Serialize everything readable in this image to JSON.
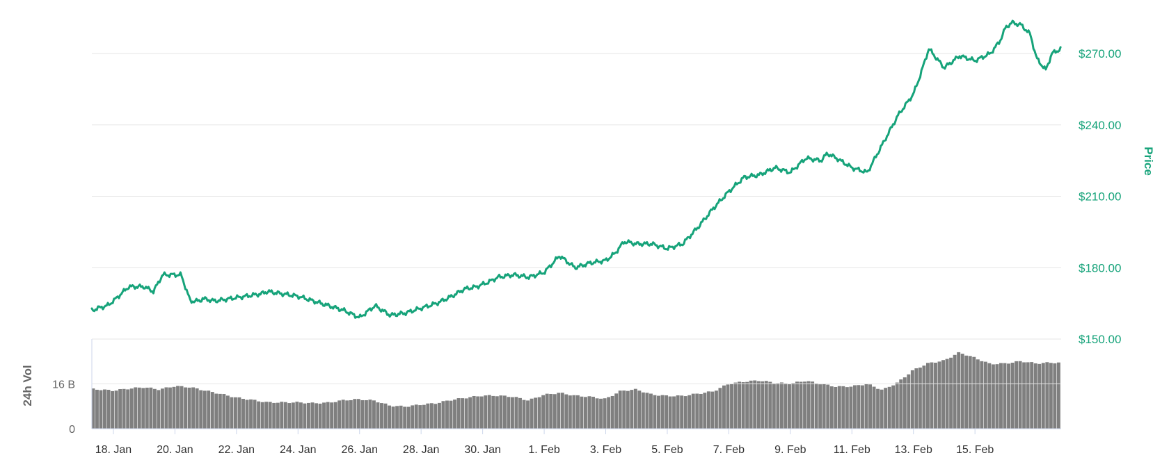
{
  "chart_data": {
    "type": "line",
    "title": "",
    "price_axis": {
      "label": "Price",
      "ticks": [
        "$150.00",
        "$180.00",
        "$210.00",
        "$240.00",
        "$270.00"
      ],
      "tick_values": [
        150,
        180,
        210,
        240,
        270
      ],
      "ylim": [
        150,
        280
      ],
      "position": "right"
    },
    "volume_axis": {
      "label": "24h Vol",
      "ticks": [
        "0",
        "16 B"
      ],
      "tick_values": [
        0,
        16
      ],
      "unit": "B",
      "ylim": [
        0,
        32
      ],
      "position": "left"
    },
    "x_axis": {
      "ticks": [
        "18. Jan",
        "20. Jan",
        "22. Jan",
        "24. Jan",
        "26. Jan",
        "28. Jan",
        "30. Jan",
        "1. Feb",
        "3. Feb",
        "5. Feb",
        "7. Feb",
        "9. Feb",
        "11. Feb",
        "13. Feb",
        "15. Feb"
      ],
      "range_days": [
        -0.7,
        30.8
      ]
    },
    "grid": true,
    "series": [
      {
        "name": "Price",
        "color": "#16a37a",
        "x": [
          -0.7,
          -0.5,
          -0.2,
          0,
          0.5,
          1,
          1.3,
          1.6,
          1.9,
          2.2,
          2.5,
          2.8,
          2.9,
          3.3,
          3.8,
          4.3,
          4.8,
          5,
          5.5,
          6,
          6.5,
          7,
          7.5,
          8,
          8.5,
          9,
          9.5,
          10,
          10.5,
          11,
          11.4,
          11.8,
          12.2,
          12.5,
          13,
          13.5,
          14,
          14.5,
          15,
          15.5,
          16,
          16.3,
          16.6,
          17,
          17.5,
          18,
          18.5,
          19,
          19.5,
          20,
          20.5,
          21,
          21.5,
          22,
          22.5,
          23,
          23.2,
          23.5,
          24,
          24.5,
          25,
          25.5,
          26,
          26.2,
          26.5,
          27,
          27.5,
          28,
          28.5,
          28.8,
          29,
          29.2,
          29.5,
          29.8,
          30,
          30.3,
          30.5,
          30.8
        ],
        "values": [
          162,
          163,
          164,
          166,
          172,
          172,
          170,
          177,
          177,
          177,
          166,
          166,
          167,
          166,
          167,
          168,
          169,
          170,
          169,
          168,
          166,
          164,
          162,
          159,
          164,
          160,
          161,
          163,
          165,
          168,
          171,
          172,
          174,
          176,
          177,
          176,
          178,
          185,
          180,
          182,
          183,
          186,
          191,
          190,
          190,
          188,
          190,
          197,
          205,
          212,
          218,
          219,
          222,
          220,
          226,
          225,
          228,
          226,
          222,
          220,
          232,
          244,
          253,
          260,
          272,
          264,
          269,
          267,
          270,
          275,
          281,
          283,
          282,
          278,
          268,
          263,
          270,
          272
        ]
      },
      {
        "name": "24h Vol",
        "color": "#7f7f7f",
        "x": [
          -0.7,
          0,
          0.5,
          1,
          1.5,
          2,
          2.5,
          3,
          3.5,
          4,
          4.5,
          5,
          5.5,
          6,
          6.5,
          7,
          7.5,
          8,
          8.5,
          9,
          9.5,
          10,
          10.5,
          11,
          11.5,
          12,
          12.5,
          13,
          13.5,
          14,
          14.5,
          15,
          15.5,
          16,
          16.5,
          17,
          17.5,
          18,
          18.5,
          19,
          19.5,
          20,
          20.5,
          21,
          21.5,
          22,
          22.5,
          23,
          23.5,
          24,
          24.5,
          25,
          25.5,
          26,
          26.5,
          27,
          27.5,
          28,
          28.5,
          29,
          29.5,
          30,
          30.5,
          30.8
        ],
        "values": [
          14.2,
          13.6,
          14.3,
          14.8,
          14.0,
          15.2,
          14.8,
          13.6,
          12.4,
          11.1,
          10.3,
          9.4,
          9.4,
          9.4,
          9.1,
          9.3,
          10.2,
          10.5,
          10.0,
          8.2,
          7.9,
          8.6,
          9.1,
          10.3,
          11.1,
          11.8,
          11.8,
          11.4,
          10.1,
          12.1,
          12.8,
          11.8,
          11.4,
          10.6,
          13.5,
          14.0,
          12.2,
          11.7,
          11.7,
          12.5,
          13.3,
          16.0,
          16.8,
          17.2,
          16.4,
          16.1,
          17.1,
          16.0,
          15.0,
          15.1,
          16.0,
          13.8,
          16.5,
          20.9,
          23.4,
          24.3,
          27.2,
          25.3,
          23.1,
          23.3,
          24.1,
          23.3,
          23.6,
          23.5
        ]
      }
    ]
  }
}
